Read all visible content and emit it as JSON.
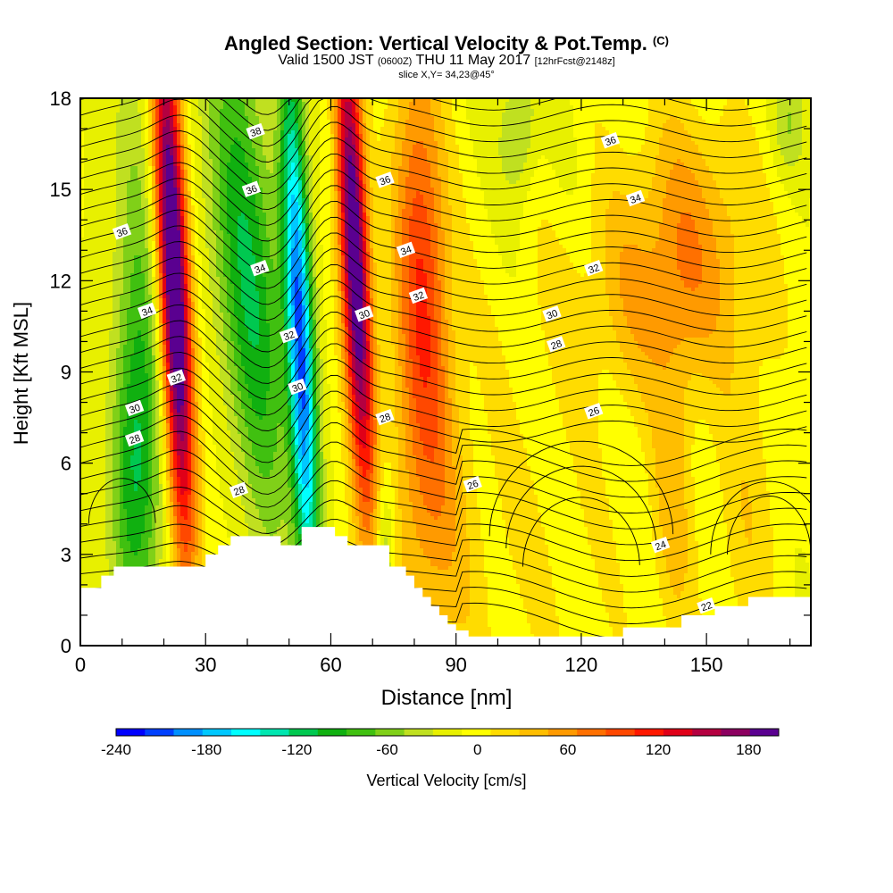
{
  "chart_data": {
    "type": "heatmap",
    "title": "Angled Section: Vertical Velocity & Pot.Temp.",
    "title_tag": "(C)",
    "subtitle_prefix": "Valid 1500 JST",
    "subtitle_utc": "(0600Z)",
    "subtitle_date": "THU 11 May 2017",
    "subtitle_run": "[12hrFcst@2148z]",
    "slice": "slice X,Y= 34,23@45°",
    "xlabel": "Distance [nm]",
    "ylabel": "Height [Kft MSL]",
    "xlim": [
      0,
      175
    ],
    "ylim": [
      0,
      18
    ],
    "xticks": [
      "0",
      "30",
      "60",
      "90",
      "120",
      "150"
    ],
    "yticks": [
      "0",
      "3",
      "6",
      "9",
      "12",
      "15",
      "18"
    ],
    "colorbar": {
      "label": "Vertical Velocity [cm/s]",
      "ticks": [
        "-240",
        "-180",
        "-120",
        "-60",
        "0",
        "60",
        "120",
        "180"
      ],
      "levels": [
        -240,
        -220,
        -200,
        -180,
        -160,
        -140,
        -120,
        -100,
        -80,
        -60,
        -40,
        -20,
        0,
        20,
        40,
        60,
        80,
        100,
        120,
        140,
        160,
        180,
        200
      ],
      "colors": [
        "#0000ff",
        "#0040ff",
        "#0090ff",
        "#00c8ff",
        "#00ffff",
        "#00e6b0",
        "#00c850",
        "#10b010",
        "#40c010",
        "#80d018",
        "#c0e020",
        "#e8f000",
        "#ffff00",
        "#ffdc00",
        "#ffbe00",
        "#ff9a00",
        "#ff7000",
        "#ff4800",
        "#ff1800",
        "#e00018",
        "#b40040",
        "#8c0060",
        "#5a0090"
      ]
    },
    "terrain": [
      [
        0,
        1.9
      ],
      [
        5,
        2.3
      ],
      [
        8,
        2.6
      ],
      [
        30,
        3.0
      ],
      [
        33,
        3.3
      ],
      [
        36,
        3.6
      ],
      [
        42,
        3.6
      ],
      [
        46,
        3.6
      ],
      [
        48,
        3.3
      ],
      [
        52,
        3.3
      ],
      [
        53,
        3.9
      ],
      [
        58,
        3.9
      ],
      [
        61,
        3.6
      ],
      [
        64,
        3.3
      ],
      [
        70,
        3.3
      ],
      [
        73,
        3.3
      ],
      [
        74,
        2.6
      ],
      [
        78,
        2.3
      ],
      [
        80,
        1.9
      ],
      [
        82,
        1.6
      ],
      [
        84,
        1.3
      ],
      [
        86,
        1.0
      ],
      [
        88,
        0.7
      ],
      [
        90,
        0.5
      ],
      [
        93,
        0.3
      ],
      [
        100,
        0.3
      ],
      [
        112,
        0.3
      ],
      [
        125,
        0.3
      ],
      [
        130,
        0.6
      ],
      [
        140,
        0.6
      ],
      [
        143,
        0.6
      ],
      [
        144,
        1.0
      ],
      [
        150,
        1.0
      ],
      [
        152,
        1.3
      ],
      [
        158,
        1.3
      ],
      [
        160,
        1.6
      ],
      [
        175,
        1.6
      ]
    ],
    "theta_labels": [
      {
        "text": "38",
        "x": 42,
        "y": 16.9
      },
      {
        "text": "36",
        "x": 41,
        "y": 15.0
      },
      {
        "text": "34",
        "x": 43,
        "y": 12.4
      },
      {
        "text": "36",
        "x": 10,
        "y": 13.6
      },
      {
        "text": "34",
        "x": 16,
        "y": 11.0
      },
      {
        "text": "32",
        "x": 23,
        "y": 8.8
      },
      {
        "text": "30",
        "x": 13,
        "y": 7.8
      },
      {
        "text": "28",
        "x": 13,
        "y": 6.8
      },
      {
        "text": "32",
        "x": 50,
        "y": 10.2
      },
      {
        "text": "30",
        "x": 52,
        "y": 8.5
      },
      {
        "text": "28",
        "x": 38,
        "y": 5.1
      },
      {
        "text": "36",
        "x": 73,
        "y": 15.3
      },
      {
        "text": "34",
        "x": 78,
        "y": 13.0
      },
      {
        "text": "32",
        "x": 81,
        "y": 11.5
      },
      {
        "text": "30",
        "x": 68,
        "y": 10.9
      },
      {
        "text": "28",
        "x": 73,
        "y": 7.5
      },
      {
        "text": "26",
        "x": 94,
        "y": 5.3
      },
      {
        "text": "36",
        "x": 127,
        "y": 16.6
      },
      {
        "text": "34",
        "x": 133,
        "y": 14.7
      },
      {
        "text": "32",
        "x": 123,
        "y": 12.4
      },
      {
        "text": "30",
        "x": 113,
        "y": 10.9
      },
      {
        "text": "28",
        "x": 114,
        "y": 9.9
      },
      {
        "text": "26",
        "x": 123,
        "y": 7.7
      },
      {
        "text": "24",
        "x": 139,
        "y": 3.3
      },
      {
        "text": "22",
        "x": 150,
        "y": 1.3
      }
    ]
  }
}
